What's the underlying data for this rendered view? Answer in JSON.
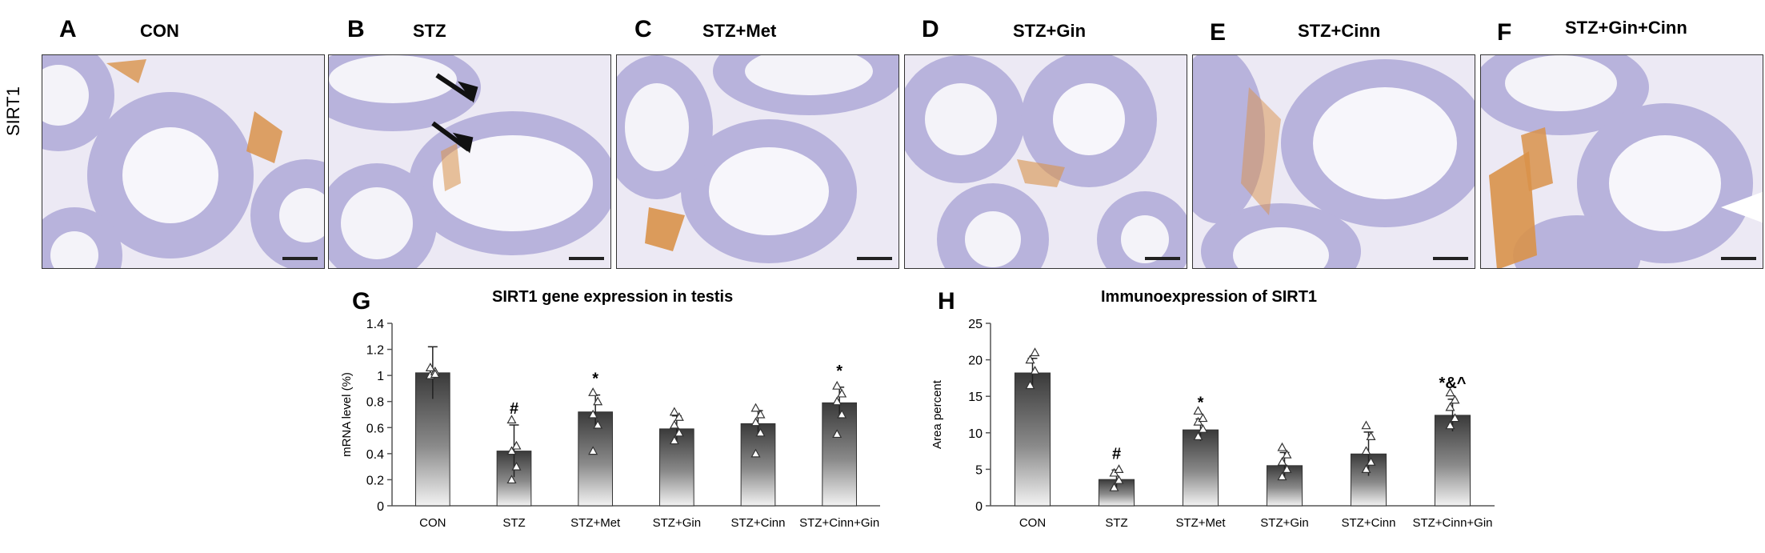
{
  "row_label": "SIRT1",
  "panels": [
    {
      "letter": "A",
      "title": "CON"
    },
    {
      "letter": "B",
      "title": "STZ"
    },
    {
      "letter": "C",
      "title": "STZ+Met"
    },
    {
      "letter": "D",
      "title": "STZ+Gin"
    },
    {
      "letter": "E",
      "title": "STZ+Cinn"
    },
    {
      "letter": "F",
      "title": "STZ+Gin+Cinn"
    }
  ],
  "colors": {
    "bar_top": "#3a3a3a",
    "bar_bottom": "#f2f2f2",
    "tissue": "#b8b3dc",
    "stain": "#d9924a"
  },
  "chart_data": [
    {
      "letter": "G",
      "type": "bar",
      "title": "SIRT1 gene expression in testis",
      "xlabel": "",
      "ylabel": "mRNA level (%)",
      "categories": [
        "CON",
        "STZ",
        "STZ+Met",
        "STZ+Gin",
        "STZ+Cinn",
        "STZ+Cinn+Gin"
      ],
      "values": [
        1.02,
        0.42,
        0.72,
        0.59,
        0.63,
        0.79
      ],
      "errors": [
        0.2,
        0.2,
        0.13,
        0.1,
        0.1,
        0.12
      ],
      "annotations": [
        "",
        "#",
        "*",
        "",
        "",
        "*"
      ],
      "points": [
        [
          1.0,
          1.03,
          1.06,
          1.01
        ],
        [
          0.2,
          0.3,
          0.42,
          0.46,
          0.66
        ],
        [
          0.42,
          0.62,
          0.7,
          0.8,
          0.87
        ],
        [
          0.5,
          0.56,
          0.62,
          0.68,
          0.72
        ],
        [
          0.4,
          0.56,
          0.64,
          0.7,
          0.75
        ],
        [
          0.55,
          0.7,
          0.8,
          0.86,
          0.92
        ]
      ],
      "ylim": [
        0,
        1.4
      ],
      "yticks": [
        "0",
        "0.2",
        "0.4",
        "0.6",
        "0.8",
        "1",
        "1.2",
        "1.4"
      ],
      "grid": false
    },
    {
      "letter": "H",
      "type": "bar",
      "title": "Immunoexpression of SIRT1",
      "xlabel": "",
      "ylabel": "Area percent",
      "categories": [
        "CON",
        "STZ",
        "STZ+Met",
        "STZ+Gin",
        "STZ+Cinn",
        "STZ+Cinn+Gin"
      ],
      "values": [
        18.2,
        3.6,
        10.4,
        5.5,
        7.1,
        12.4
      ],
      "errors": [
        2.0,
        1.3,
        1.5,
        1.8,
        3.0,
        2.2
      ],
      "annotations": [
        "",
        "#",
        "*",
        "",
        "",
        "*&^"
      ],
      "points": [
        [
          16.5,
          18.5,
          20.0,
          21.0
        ],
        [
          2.5,
          3.5,
          4.5,
          5.0
        ],
        [
          9.5,
          10.5,
          11.5,
          12.0,
          13.0
        ],
        [
          4.0,
          5.0,
          6.0,
          7.0,
          8.0
        ],
        [
          5.0,
          6.0,
          7.5,
          9.5,
          11.0
        ],
        [
          11.0,
          12.0,
          13.5,
          14.5,
          15.5
        ]
      ],
      "ylim": [
        0,
        25
      ],
      "yticks": [
        "0",
        "5",
        "10",
        "15",
        "20",
        "25"
      ],
      "grid": false
    }
  ]
}
